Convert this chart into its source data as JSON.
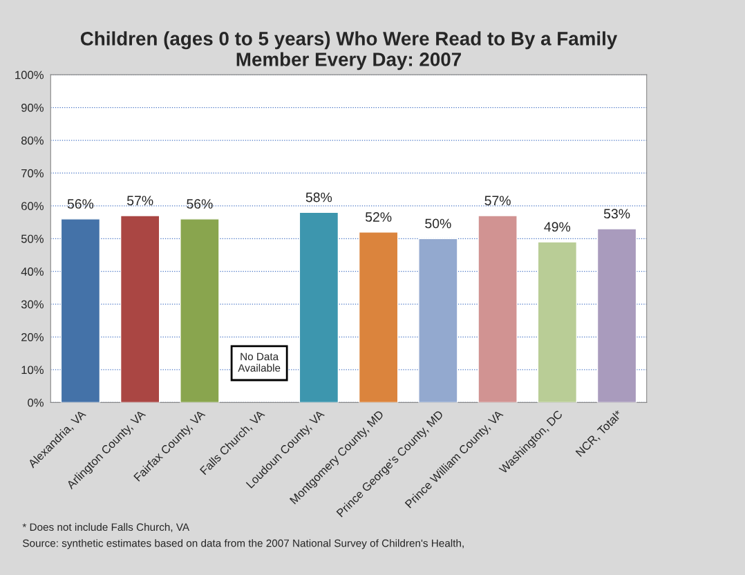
{
  "chart_data": {
    "type": "bar",
    "title": "Children (ages 0 to 5 years) Who Were Read to By a Family\nMember Every Day: 2007",
    "categories": [
      "Alexandria, VA",
      "Arlington County, VA",
      "Fairfax County, VA",
      "Falls Church, VA",
      "Loudoun County, VA",
      "Montgomery County, MD",
      "Prince George's County, MD",
      "Prince William County, VA",
      "Washington, DC",
      "NCR, Total*"
    ],
    "values": [
      56,
      57,
      56,
      null,
      58,
      52,
      50,
      57,
      49,
      53
    ],
    "value_labels": [
      "56%",
      "57%",
      "56%",
      null,
      "58%",
      "52%",
      "50%",
      "57%",
      "49%",
      "53%"
    ],
    "colors": [
      "#4472a8",
      "#aa4643",
      "#89a54e",
      "#ffffff",
      "#3d96ae",
      "#db843d",
      "#93a9cf",
      "#d19392",
      "#b9cd96",
      "#a99bbd"
    ],
    "ylim": [
      0,
      100
    ],
    "yticks": [
      {
        "value": 0,
        "label": "0%"
      },
      {
        "value": 10,
        "label": "10%"
      },
      {
        "value": 20,
        "label": "20%"
      },
      {
        "value": 30,
        "label": "30%"
      },
      {
        "value": 40,
        "label": "40%"
      },
      {
        "value": 50,
        "label": "50%"
      },
      {
        "value": 60,
        "label": "60%"
      },
      {
        "value": 70,
        "label": "70%"
      },
      {
        "value": 80,
        "label": "80%"
      },
      {
        "value": 90,
        "label": "90%"
      },
      {
        "value": 100,
        "label": "100%"
      }
    ],
    "grid": "y",
    "annotations": [
      "No Data\nAvailable",
      "* Does not include Falls Church, VA",
      "Source: synthetic estimates based on data from the 2007 National Survey of Children's Health,"
    ]
  }
}
